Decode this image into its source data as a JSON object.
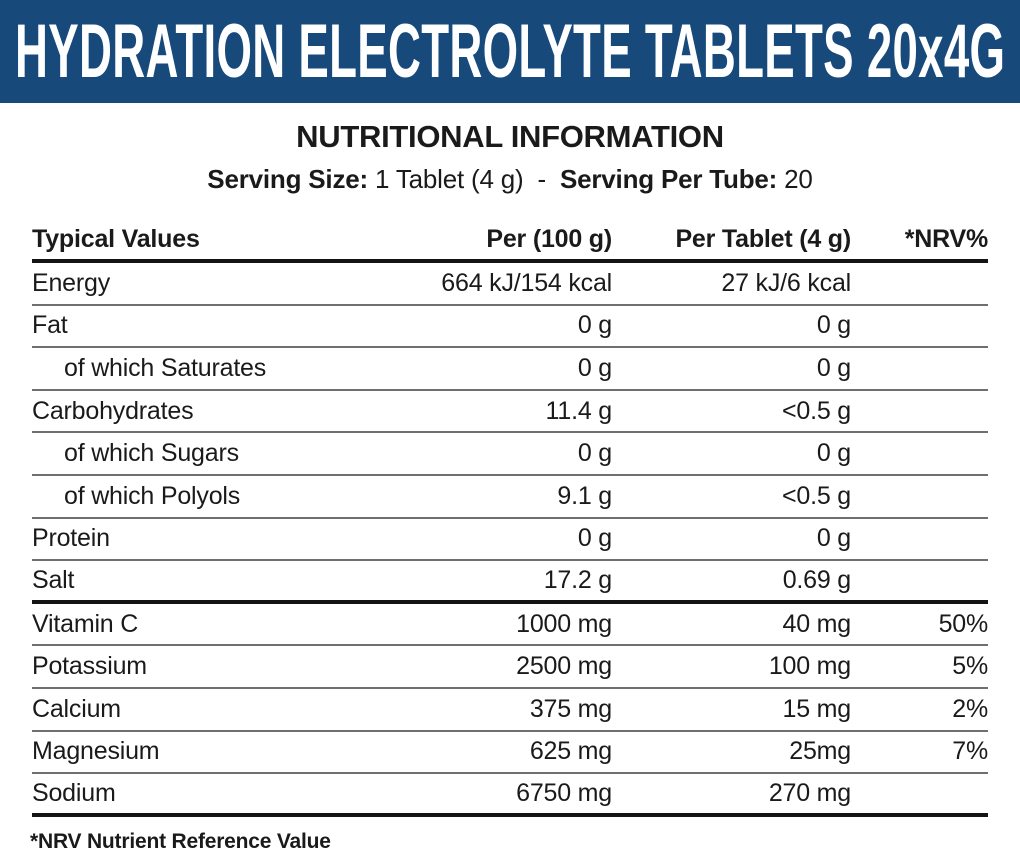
{
  "banner": {
    "title": "HYDRATION ELECTROLYTE TABLETS 20x4G",
    "bg_color": "#17497b",
    "text_color": "#ffffff"
  },
  "title": "NUTRITIONAL INFORMATION",
  "serving": {
    "size_label": "Serving Size:",
    "size_value": "1 Tablet (4 g)",
    "separator": "-",
    "per_tube_label": "Serving Per Tube:",
    "per_tube_value": "20"
  },
  "table": {
    "columns": [
      "Typical Values",
      "Per (100 g)",
      "Per Tablet (4 g)",
      "*NRV%"
    ],
    "rows": [
      {
        "label": "Energy",
        "per100": "664 kJ/154 kcal",
        "perTablet": "27 kJ/6 kcal",
        "nrv": "",
        "indent": false,
        "divider": "thin"
      },
      {
        "label": "Fat",
        "per100": "0 g",
        "perTablet": "0 g",
        "nrv": "",
        "indent": false,
        "divider": "thin"
      },
      {
        "label": "of which Saturates",
        "per100": "0 g",
        "perTablet": "0 g",
        "nrv": "",
        "indent": true,
        "divider": "thin"
      },
      {
        "label": "Carbohydrates",
        "per100": "11.4 g",
        "perTablet": "<0.5 g",
        "nrv": "",
        "indent": false,
        "divider": "thin"
      },
      {
        "label": "of which Sugars",
        "per100": "0 g",
        "perTablet": "0 g",
        "nrv": "",
        "indent": true,
        "divider": "thin"
      },
      {
        "label": "of which Polyols",
        "per100": "9.1 g",
        "perTablet": "<0.5 g",
        "nrv": "",
        "indent": true,
        "divider": "thin"
      },
      {
        "label": "Protein",
        "per100": "0 g",
        "perTablet": "0 g",
        "nrv": "",
        "indent": false,
        "divider": "thin"
      },
      {
        "label": "Salt",
        "per100": "17.2 g",
        "perTablet": "0.69 g",
        "nrv": "",
        "indent": false,
        "divider": "thick"
      },
      {
        "label": "Vitamin C",
        "per100": "1000 mg",
        "perTablet": "40 mg",
        "nrv": "50%",
        "indent": false,
        "divider": "thin"
      },
      {
        "label": "Potassium",
        "per100": "2500 mg",
        "perTablet": "100 mg",
        "nrv": "5%",
        "indent": false,
        "divider": "thin"
      },
      {
        "label": "Calcium",
        "per100": "375 mg",
        "perTablet": "15 mg",
        "nrv": "2%",
        "indent": false,
        "divider": "thin"
      },
      {
        "label": "Magnesium",
        "per100": "625 mg",
        "perTablet": "25mg",
        "nrv": "7%",
        "indent": false,
        "divider": "thin"
      },
      {
        "label": "Sodium",
        "per100": "6750 mg",
        "perTablet": "270 mg",
        "nrv": "",
        "indent": false,
        "divider": "thick"
      }
    ]
  },
  "footnote": "*NRV Nutrient Reference Value"
}
